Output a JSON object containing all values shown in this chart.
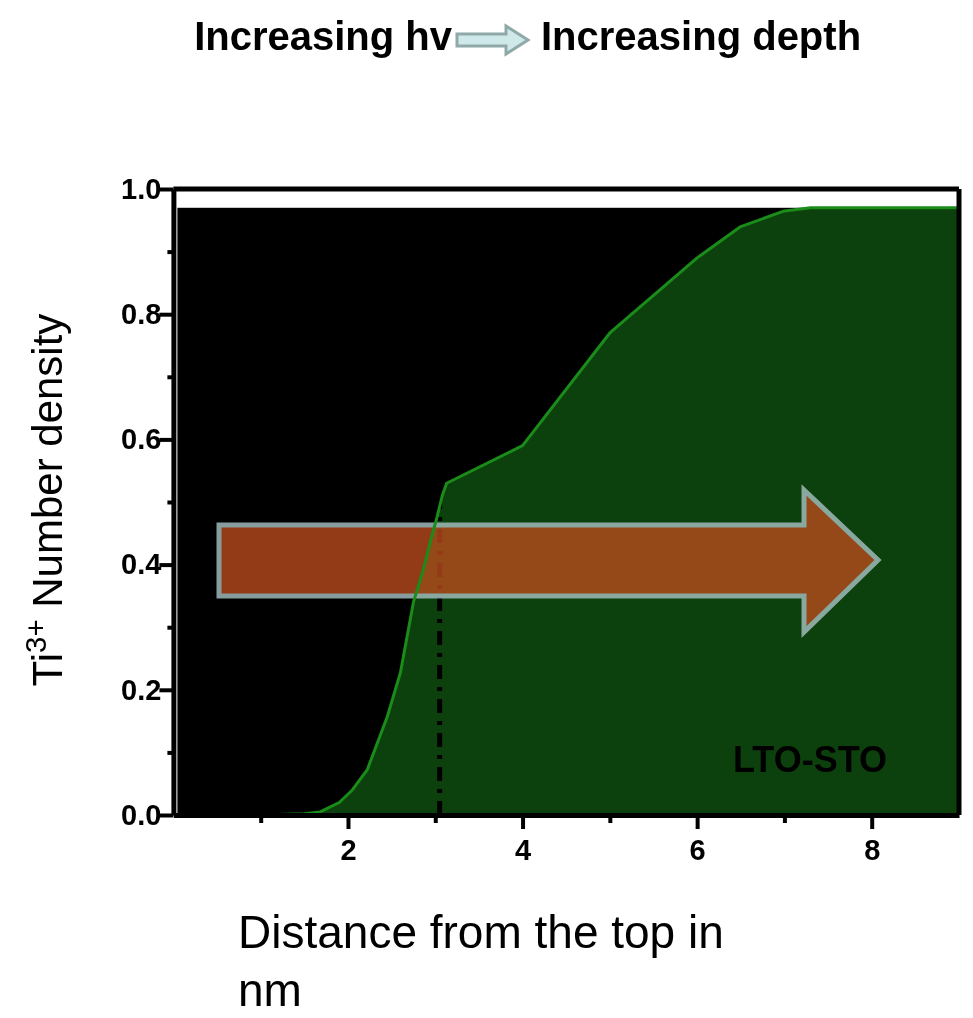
{
  "chart_data": {
    "type": "area",
    "title": "Increasing hv",
    "subtitle": "Increasing depth",
    "xlabel": "Distance from the top in nm",
    "ylabel": "Ti$^{3+}$ Number density",
    "x": [
      0.1,
      1.0,
      1.5,
      1.68,
      1.9,
      2.05,
      2.22,
      2.45,
      2.6,
      2.75,
      2.86,
      2.95,
      3.02,
      3.08,
      3.13,
      4.0,
      5.0,
      6.0,
      6.5,
      7.0,
      7.3,
      8.0,
      9.0
    ],
    "series": [
      {
        "color": "#1a8c1a",
        "values": [
          0,
          0,
          0.002,
          0.005,
          0.02,
          0.04,
          0.072,
          0.157,
          0.227,
          0.34,
          0.39,
          0.44,
          0.476,
          0.51,
          0.53,
          0.59,
          0.77,
          0.89,
          0.94,
          0.965,
          0.97,
          0.97,
          0.97
        ]
      }
    ],
    "xlim": [
      0,
      9
    ],
    "ylim": [
      0,
      1
    ],
    "xticks": [
      {
        "value": 1,
        "label": null
      },
      2,
      {
        "value": 3,
        "label": null
      },
      4,
      {
        "value": 5,
        "label": null
      },
      6,
      {
        "value": 7,
        "label": null
      },
      8
    ],
    "yticks": [
      "0.0",
      {
        "value": 0.1,
        "label": null
      },
      0.2,
      {
        "value": 0.3,
        "label": null
      },
      0.4,
      {
        "value": 0.5,
        "label": null
      },
      0.6,
      {
        "value": 0.7,
        "label": null
      },
      0.8,
      {
        "value": 0.9,
        "label": null
      },
      "1.0"
    ],
    "bands": [
      {
        "axis": "y",
        "from": 0,
        "to": 0.97,
        "color": "#000000"
      }
    ],
    "ref_lines": [
      {
        "axis": "x",
        "value": 3.05,
        "color": "#000000",
        "line_style": "dashed"
      }
    ],
    "annotations": [
      "LTO-STO"
    ]
  }
}
